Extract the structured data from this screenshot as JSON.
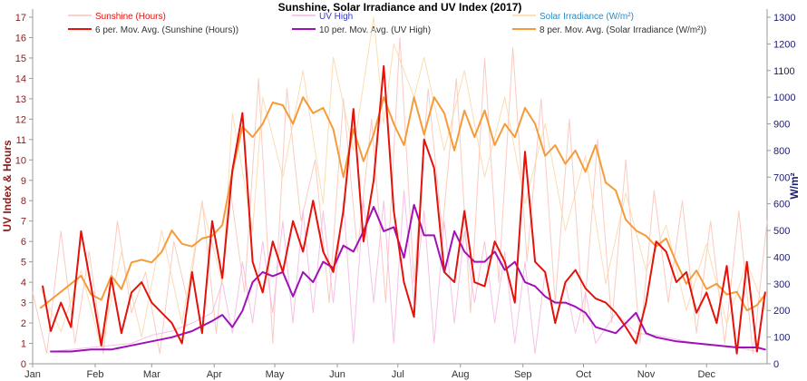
{
  "chart_data": {
    "type": "line",
    "title": "Sunshine, Solar Irradiance and UV Index (2017)",
    "ylabel_left": "UV Index & Hours",
    "ylabel_right": "W/m²",
    "ylim_left": [
      0,
      17
    ],
    "ylim_right": [
      0,
      1300
    ],
    "yticks_left": [
      "0",
      "1",
      "2",
      "3",
      "4",
      "5",
      "6",
      "7",
      "8",
      "9",
      "10",
      "11",
      "12",
      "13",
      "14",
      "15",
      "16",
      "17"
    ],
    "yticks_right": [
      "0",
      "100",
      "200",
      "300",
      "400",
      "500",
      "600",
      "700",
      "800",
      "900",
      "1000",
      "1100",
      "1200",
      "1300"
    ],
    "months": [
      "Jan",
      "Feb",
      "Mar",
      "Apr",
      "May",
      "Jun",
      "Jul",
      "Aug",
      "Sep",
      "Oct",
      "Nov",
      "Dec"
    ],
    "grid": false,
    "legend_position": "top",
    "series": [
      {
        "name": "Sunshine (Hours)",
        "axis": "left",
        "color": "#f9c2b6",
        "style": "thin",
        "x_day": [
          1,
          8,
          15,
          22,
          29,
          36,
          43,
          50,
          57,
          64,
          71,
          78,
          85,
          92,
          99,
          106,
          113,
          120,
          127,
          134,
          141,
          148,
          155,
          162,
          169,
          176,
          183,
          190,
          197,
          204,
          211,
          218,
          225,
          232,
          239,
          246,
          253,
          260,
          267,
          274,
          281,
          288,
          295,
          302,
          309,
          316,
          323,
          330,
          337,
          344,
          351,
          358,
          365
        ],
        "values": [
          3.5,
          0.5,
          6.5,
          1.0,
          5.5,
          0.5,
          7.0,
          2.5,
          4.5,
          0.5,
          6.0,
          3.0,
          8.0,
          1.5,
          8.5,
          3.5,
          14.0,
          1.0,
          13.5,
          7.0,
          10.0,
          3.0,
          13.0,
          5.5,
          12.0,
          3.0,
          16.0,
          4.0,
          13.5,
          6.5,
          14.0,
          2.5,
          15.0,
          4.0,
          15.5,
          5.0,
          13.0,
          3.0,
          12.0,
          2.0,
          11.0,
          2.0,
          10.0,
          1.0,
          8.5,
          3.0,
          8.0,
          1.5,
          7.0,
          1.0,
          7.5,
          0.5,
          7.0
        ]
      },
      {
        "name": "6 per. Mov. Avg. (Sunshine (Hours))",
        "axis": "left",
        "color": "#e3120b",
        "style": "thick",
        "x_day": [
          6,
          10,
          15,
          20,
          25,
          30,
          35,
          40,
          45,
          50,
          55,
          60,
          65,
          70,
          75,
          80,
          85,
          90,
          95,
          100,
          105,
          110,
          115,
          120,
          125,
          130,
          135,
          140,
          145,
          150,
          155,
          160,
          165,
          170,
          175,
          180,
          185,
          190,
          195,
          200,
          205,
          210,
          215,
          220,
          225,
          230,
          235,
          240,
          245,
          250,
          255,
          260,
          265,
          270,
          275,
          280,
          285,
          290,
          295,
          300,
          305,
          310,
          315,
          320,
          325,
          330,
          335,
          340,
          345,
          350,
          355,
          360,
          364
        ],
        "values": [
          3.8,
          1.6,
          3.0,
          1.8,
          6.5,
          3.8,
          0.9,
          4.2,
          1.5,
          3.5,
          4.0,
          3.0,
          2.5,
          2.0,
          1.0,
          4.5,
          1.5,
          7.0,
          4.2,
          9.5,
          12.3,
          5.0,
          3.5,
          6.0,
          4.5,
          7.0,
          5.5,
          8.0,
          5.5,
          4.5,
          7.5,
          12.5,
          6.0,
          9.0,
          14.6,
          7.5,
          4.0,
          2.3,
          11.0,
          9.6,
          4.5,
          4.0,
          7.5,
          4.0,
          3.8,
          6.0,
          5.0,
          3.0,
          10.4,
          5.0,
          4.5,
          2.0,
          4.0,
          4.6,
          3.7,
          3.2,
          3.0,
          2.5,
          1.8,
          1.0,
          3.0,
          6.0,
          5.5,
          4.0,
          4.5,
          2.5,
          3.5,
          2.0,
          4.8,
          0.5,
          5.0,
          0.6,
          3.5
        ]
      },
      {
        "name": "UV High",
        "axis": "left",
        "color": "#f3b6e2",
        "style": "thin",
        "x_day": [
          10,
          20,
          30,
          40,
          50,
          60,
          70,
          80,
          90,
          95,
          100,
          105,
          110,
          115,
          120,
          125,
          130,
          135,
          140,
          145,
          150,
          155,
          160,
          165,
          170,
          175,
          180,
          185,
          190,
          195,
          200,
          205,
          210,
          215,
          220,
          225,
          230,
          235,
          240,
          245,
          250,
          255,
          260,
          265,
          270,
          275,
          280,
          290,
          300,
          310,
          320,
          330,
          340,
          350,
          360
        ],
        "values": [
          0.6,
          0.7,
          0.8,
          0.9,
          1.0,
          1.4,
          1.6,
          2.0,
          2.5,
          4.0,
          1.5,
          5.0,
          2.0,
          6.0,
          2.5,
          7.0,
          2.0,
          7.5,
          2.5,
          7.5,
          3.0,
          8.0,
          1.0,
          8.0,
          3.0,
          8.0,
          1.0,
          8.5,
          3.0,
          7.5,
          1.0,
          7.0,
          2.0,
          6.5,
          3.0,
          6.0,
          2.0,
          5.5,
          1.0,
          5.0,
          0.5,
          4.5,
          2.0,
          4.0,
          1.5,
          3.5,
          1.0,
          2.5,
          1.5,
          1.4,
          1.2,
          1.0,
          0.9,
          0.8,
          0.6
        ]
      },
      {
        "name": "10 per. Mov. Avg. (UV High)",
        "axis": "left",
        "color": "#a010b8",
        "style": "thick",
        "x_day": [
          10,
          20,
          30,
          40,
          50,
          60,
          70,
          80,
          90,
          95,
          100,
          105,
          110,
          115,
          120,
          125,
          130,
          135,
          140,
          145,
          150,
          155,
          160,
          165,
          170,
          175,
          180,
          185,
          190,
          195,
          200,
          205,
          210,
          215,
          220,
          225,
          230,
          235,
          240,
          245,
          250,
          255,
          260,
          265,
          270,
          275,
          280,
          290,
          300,
          305,
          310,
          320,
          330,
          340,
          350,
          360,
          364
        ],
        "values": [
          0.6,
          0.6,
          0.7,
          0.7,
          0.9,
          1.1,
          1.3,
          1.6,
          2.1,
          2.4,
          1.8,
          2.6,
          4.0,
          4.5,
          4.3,
          4.5,
          3.3,
          4.5,
          4.0,
          5.0,
          4.7,
          5.8,
          5.5,
          6.5,
          7.7,
          6.5,
          6.7,
          5.2,
          7.8,
          6.3,
          6.3,
          4.5,
          6.5,
          5.5,
          5.0,
          5.0,
          5.5,
          4.6,
          5.0,
          4.0,
          3.8,
          3.3,
          3.0,
          3.0,
          2.8,
          2.5,
          1.8,
          1.5,
          2.5,
          1.5,
          1.3,
          1.1,
          1.0,
          0.9,
          0.8,
          0.8,
          0.7
        ]
      },
      {
        "name": "Solar Irradiance (W/m²)",
        "axis": "right",
        "color": "#fbd7a6",
        "style": "thin",
        "x_day": [
          5,
          15,
          25,
          35,
          45,
          55,
          65,
          75,
          85,
          95,
          100,
          110,
          115,
          125,
          135,
          145,
          150,
          160,
          170,
          175,
          180,
          190,
          195,
          205,
          215,
          225,
          235,
          245,
          255,
          265,
          275,
          285,
          295,
          305,
          315,
          325,
          335,
          345,
          355,
          364
        ],
        "values": [
          280,
          120,
          350,
          60,
          420,
          100,
          500,
          150,
          600,
          300,
          940,
          500,
          1000,
          700,
          1100,
          600,
          1150,
          800,
          1300,
          900,
          1200,
          1000,
          1150,
          800,
          1100,
          700,
          1000,
          600,
          900,
          500,
          780,
          300,
          640,
          350,
          520,
          200,
          450,
          150,
          380,
          200
        ]
      },
      {
        "name": "8 per. Mov. Avg. (Solar Irradiance (W/m²))",
        "axis": "right",
        "color": "#f59b3a",
        "style": "thick",
        "x_day": [
          5,
          10,
          15,
          20,
          25,
          30,
          35,
          40,
          45,
          50,
          55,
          60,
          65,
          70,
          75,
          80,
          85,
          90,
          95,
          100,
          105,
          110,
          115,
          120,
          125,
          130,
          135,
          140,
          145,
          150,
          155,
          160,
          165,
          170,
          175,
          180,
          185,
          190,
          195,
          200,
          205,
          210,
          215,
          220,
          225,
          230,
          235,
          240,
          245,
          250,
          255,
          260,
          265,
          270,
          275,
          280,
          285,
          290,
          295,
          300,
          305,
          310,
          315,
          320,
          325,
          330,
          335,
          340,
          345,
          350,
          355,
          360,
          364
        ],
        "values": [
          210,
          240,
          270,
          300,
          330,
          260,
          240,
          330,
          280,
          380,
          390,
          380,
          420,
          500,
          450,
          440,
          470,
          480,
          520,
          720,
          890,
          850,
          900,
          980,
          970,
          900,
          1000,
          940,
          960,
          880,
          700,
          880,
          760,
          860,
          1000,
          900,
          820,
          1000,
          860,
          1000,
          940,
          800,
          950,
          850,
          950,
          820,
          900,
          850,
          960,
          900,
          780,
          820,
          750,
          800,
          720,
          820,
          680,
          650,
          540,
          500,
          480,
          440,
          470,
          380,
          300,
          350,
          280,
          300,
          260,
          270,
          200,
          220,
          260
        ]
      }
    ]
  }
}
